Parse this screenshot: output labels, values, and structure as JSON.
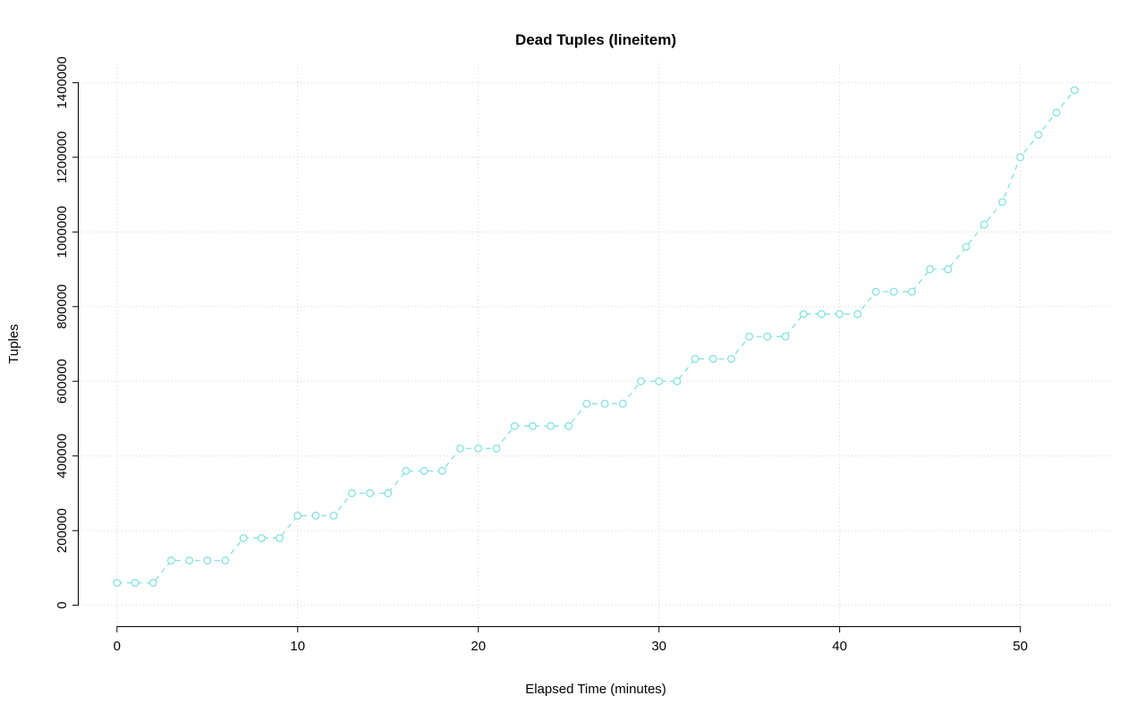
{
  "chart_data": {
    "type": "line",
    "title": "Dead Tuples (lineitem)",
    "xlabel": "Elapsed Time (minutes)",
    "ylabel": "Tuples",
    "xlim": [
      0,
      53
    ],
    "ylim": [
      0,
      1400000
    ],
    "x_ticks": [
      0,
      10,
      20,
      30,
      40,
      50
    ],
    "y_ticks": [
      0,
      200000,
      400000,
      600000,
      800000,
      1000000,
      1200000,
      1400000
    ],
    "grid": "dotted",
    "grid_color": "#d3d3d3",
    "legend_position": "none",
    "line_style": "dashed",
    "marker": "open-circle",
    "series": [
      {
        "name": "dead_tuples",
        "color": "#8ce2e2",
        "x": [
          0,
          1,
          2,
          3,
          4,
          5,
          6,
          7,
          8,
          9,
          10,
          11,
          12,
          13,
          14,
          15,
          16,
          17,
          18,
          19,
          20,
          21,
          22,
          23,
          24,
          25,
          26,
          27,
          28,
          29,
          30,
          31,
          32,
          33,
          34,
          35,
          36,
          37,
          38,
          39,
          40,
          41,
          42,
          43,
          44,
          45,
          46,
          47,
          48,
          49,
          50,
          51,
          52,
          53
        ],
        "y": [
          60000,
          60000,
          60000,
          120000,
          120000,
          120000,
          120000,
          180000,
          180000,
          180000,
          240000,
          240000,
          240000,
          300000,
          300000,
          300000,
          360000,
          360000,
          360000,
          420000,
          420000,
          420000,
          480000,
          480000,
          480000,
          480000,
          540000,
          540000,
          540000,
          600000,
          600000,
          600000,
          660000,
          660000,
          660000,
          720000,
          720000,
          720000,
          780000,
          780000,
          780000,
          780000,
          840000,
          840000,
          840000,
          900000,
          900000,
          960000,
          1020000,
          1080000,
          1200000,
          1260000,
          1320000,
          1380000
        ]
      }
    ]
  }
}
